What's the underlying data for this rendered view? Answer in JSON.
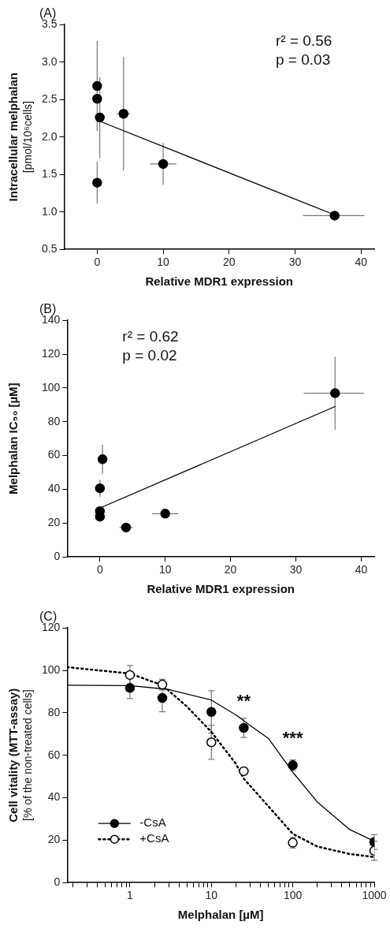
{
  "chart_data": [
    {
      "type": "scatter",
      "title": "(A)",
      "xlabel": "Relative MDR1 expression",
      "ylabel": "Intracellular melphalan\n[pmol/10⁶cells]",
      "xlim": [
        -5,
        42
      ],
      "ylim": [
        0.5,
        3.5
      ],
      "xticks": [
        0,
        10,
        20,
        30,
        40
      ],
      "yticks": [
        0.5,
        {
          "value": 1,
          "label": "1.0"
        },
        1.5,
        {
          "value": 2,
          "label": "2.0"
        },
        2.5,
        {
          "value": 3,
          "label": "3.0"
        },
        3.5
      ],
      "marker": "circle",
      "grid": false,
      "legend": false,
      "annotations": [
        "r² = 0.56",
        "p = 0.03"
      ],
      "series": [
        {
          "color": "#000000",
          "x": [
            0,
            0,
            0.4,
            0,
            4,
            10,
            36
          ],
          "values": [
            2.68,
            2.51,
            2.26,
            1.39,
            2.31,
            1.64,
            0.95
          ],
          "errors": [
            0.6,
            null,
            0.54,
            0.28,
            0.76,
            0.28,
            null
          ],
          "xerrors": [
            null,
            null,
            null,
            null,
            1,
            2,
            [
              31.2,
              40.5
            ]
          ]
        },
        {
          "type": "line",
          "color": "#000000",
          "line_style": "solid",
          "marker": "none",
          "x": [
            0.4,
            36
          ],
          "values": [
            2.21,
            0.96
          ]
        }
      ]
    },
    {
      "type": "scatter",
      "title": "(B)",
      "xlabel": "Relative MDR1 expression",
      "ylabel": "Melphalan IC₅₀ [µM]",
      "xlim": [
        -5,
        42
      ],
      "ylim": [
        0,
        140
      ],
      "xticks": [
        0,
        10,
        20,
        30,
        40
      ],
      "yticks": [
        0,
        20,
        40,
        60,
        80,
        100,
        120,
        140
      ],
      "marker": "circle",
      "grid": false,
      "legend": false,
      "annotations": [
        "r² = 0.62",
        "p = 0.02"
      ],
      "series": [
        {
          "color": "#000000",
          "x": [
            0,
            0.4,
            0,
            0,
            4,
            10,
            36
          ],
          "values": [
            40.6,
            57.8,
            27.1,
            23.8,
            17.4,
            25.6,
            96.9
          ],
          "errors": [
            5,
            8.6,
            null,
            null,
            null,
            null,
            21.6
          ],
          "xerrors": [
            null,
            null,
            null,
            null,
            1,
            2,
            [
              31.2,
              40.4
            ]
          ]
        },
        {
          "type": "line",
          "color": "#000000",
          "line_style": "solid",
          "marker": "none",
          "x": [
            0.4,
            36
          ],
          "values": [
            29.6,
            89
          ]
        }
      ]
    },
    {
      "type": "scatter",
      "title": "(C)",
      "xlabel": "Melphalan [µM]",
      "ylabel": "Cell vitality (MTT-assay)\n[% of the non-treated cells]",
      "log": "x",
      "xlim": [
        0.17,
        1000
      ],
      "ylim": [
        0,
        120
      ],
      "xticks": [
        {
          "value": 0.2,
          "label": null
        },
        {
          "value": 0.3,
          "label": null
        },
        {
          "value": 0.4,
          "label": null
        },
        {
          "value": 0.5,
          "label": null
        },
        {
          "value": 0.6,
          "label": null
        },
        {
          "value": 0.7,
          "label": null
        },
        {
          "value": 0.8,
          "label": null
        },
        {
          "value": 0.9,
          "label": null
        },
        1,
        {
          "value": 2,
          "label": null
        },
        {
          "value": 3,
          "label": null
        },
        {
          "value": 4,
          "label": null
        },
        {
          "value": 5,
          "label": null
        },
        {
          "value": 6,
          "label": null
        },
        {
          "value": 7,
          "label": null
        },
        {
          "value": 8,
          "label": null
        },
        {
          "value": 9,
          "label": null
        },
        10,
        {
          "value": 20,
          "label": null
        },
        {
          "value": 30,
          "label": null
        },
        {
          "value": 40,
          "label": null
        },
        {
          "value": 50,
          "label": null
        },
        {
          "value": 60,
          "label": null
        },
        {
          "value": 70,
          "label": null
        },
        {
          "value": 80,
          "label": null
        },
        {
          "value": 90,
          "label": null
        },
        100,
        {
          "value": 200,
          "label": null
        },
        {
          "value": 300,
          "label": null
        },
        {
          "value": 400,
          "label": null
        },
        {
          "value": 500,
          "label": null
        },
        {
          "value": 600,
          "label": null
        },
        {
          "value": 700,
          "label": null
        },
        {
          "value": 800,
          "label": null
        },
        {
          "value": 900,
          "label": null
        },
        1000
      ],
      "yticks": [
        0,
        20,
        40,
        60,
        80,
        100,
        120
      ],
      "grid": false,
      "legend": "bottom left",
      "annotations": [
        {
          "text": "**",
          "x": 25,
          "y": 72.9
        },
        {
          "text": "***",
          "x": 100,
          "y": 55.3
        }
      ],
      "series": [
        {
          "name": "-CsA",
          "color": "#000000",
          "marker": "circle",
          "line_style": "solid",
          "x": [
            1,
            2.5,
            10,
            25,
            100,
            1000
          ],
          "values": [
            91.7,
            87,
            80.4,
            72.9,
            55.3,
            19.1
          ],
          "errors": [
            5,
            6.5,
            10,
            4.5,
            2.5,
            3.5
          ]
        },
        {
          "name": "+CsA",
          "color": "#000000",
          "marker": "circle-open",
          "line_style": "dotted",
          "x": [
            1,
            2.5,
            10,
            25,
            100,
            1000
          ],
          "values": [
            97.8,
            93.3,
            66.1,
            52.5,
            18.8,
            15
          ],
          "errors": [
            4.5,
            2.5,
            8,
            1,
            2.5,
            4.5
          ]
        },
        {
          "type": "line",
          "color": "#000000",
          "line_style": "solid",
          "marker": "none",
          "x": [
            0.17,
            1,
            3,
            10,
            20,
            30,
            50,
            100,
            200,
            500,
            1000
          ],
          "values": [
            93,
            92.8,
            91,
            86,
            79,
            74,
            68,
            52,
            38,
            25,
            19.5
          ]
        },
        {
          "type": "line",
          "color": "#000000",
          "line_style": "dotted",
          "marker": "none",
          "x": [
            0.17,
            1,
            2.5,
            5,
            10,
            20,
            25,
            50,
            100,
            200,
            500,
            1000
          ],
          "values": [
            101.5,
            98.5,
            93,
            83,
            71,
            56,
            49,
            36,
            23,
            17,
            13.5,
            12
          ]
        }
      ]
    }
  ]
}
